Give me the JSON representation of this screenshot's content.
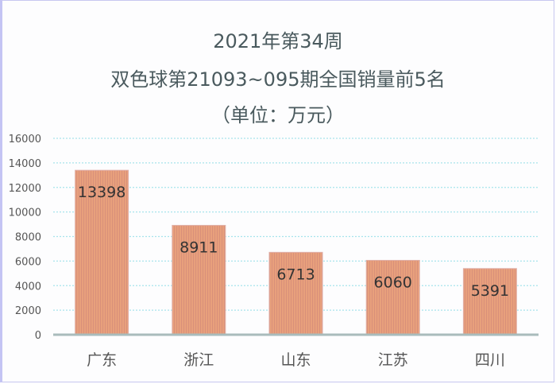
{
  "chart_data": {
    "type": "bar",
    "title_lines": [
      "2021年第34周",
      "双色球第21093~095期全国销量前5名",
      "（单位：万元）"
    ],
    "categories": [
      "广东",
      "浙江",
      "山东",
      "江苏",
      "四川"
    ],
    "values": [
      13398,
      8911,
      6713,
      6060,
      5391
    ],
    "data_labels": [
      "13398",
      "8911",
      "6713",
      "6060",
      "5391"
    ],
    "yticks": [
      "0",
      "2000",
      "4000",
      "6000",
      "8000",
      "10000",
      "12000",
      "14000",
      "16000"
    ],
    "ylim": [
      0,
      16000
    ],
    "xlabel": "",
    "ylabel": "",
    "grid": true,
    "bar_color": "#e8a07c",
    "grid_color": "#a8e4ec"
  }
}
